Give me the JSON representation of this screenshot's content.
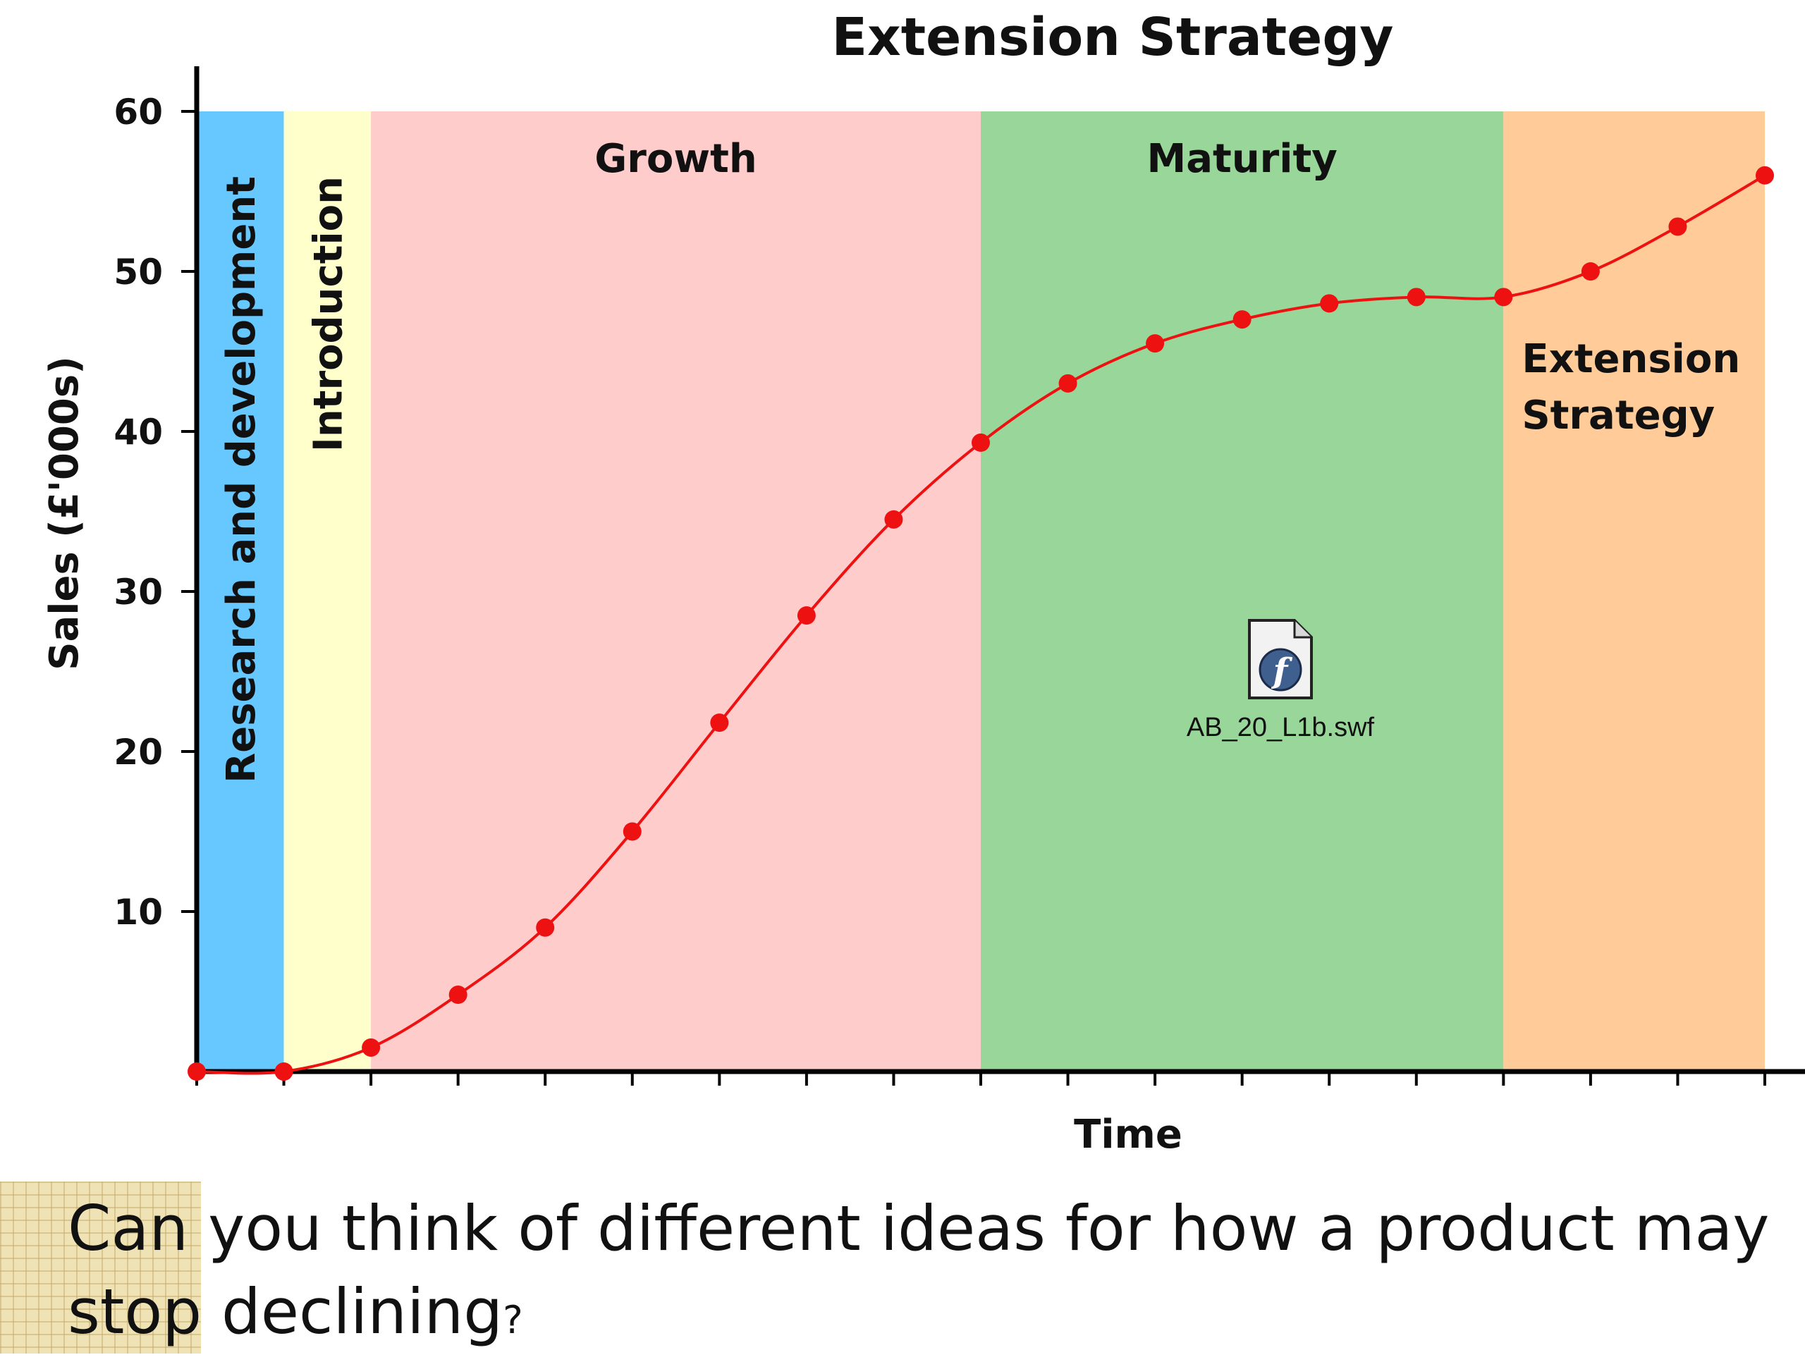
{
  "chart_data": {
    "type": "line",
    "title": "Extension Strategy",
    "xlabel": "Time",
    "ylabel": "Sales (£'000s)",
    "ylim": [
      0,
      60
    ],
    "xlim": [
      0,
      18
    ],
    "y_ticks": [
      10,
      20,
      30,
      40,
      50,
      60
    ],
    "x_tick_count": 19,
    "grid": false,
    "legend": "none",
    "series": [
      {
        "color": "#ee1111",
        "x": [
          0,
          1,
          2,
          3,
          4,
          5,
          6,
          7,
          8,
          9,
          10,
          11,
          12,
          13,
          14,
          15,
          16,
          17,
          18
        ],
        "values": [
          0,
          0,
          1.5,
          4.8,
          9,
          15,
          21.8,
          28.5,
          34.5,
          39.3,
          43,
          45.5,
          47,
          48,
          48.4,
          48.4,
          50,
          52.8,
          56
        ]
      }
    ],
    "stages": [
      {
        "label": "Research and development",
        "from": 0,
        "to": 1,
        "color": "#66c8ff",
        "orientation": "vertical"
      },
      {
        "label": "Introduction",
        "from": 1,
        "to": 2,
        "color": "#ffffcc",
        "orientation": "vertical"
      },
      {
        "label": "Growth",
        "from": 2,
        "to": 9,
        "color": "#ffcccc",
        "orientation": "horizontal"
      },
      {
        "label": "Maturity",
        "from": 9,
        "to": 15,
        "color": "#99d699",
        "orientation": "horizontal"
      },
      {
        "label": "Extension Strategy",
        "from": 15,
        "to": 18,
        "color": "#ffcc99",
        "orientation": "horizontal"
      }
    ]
  },
  "embedded_file": {
    "name": "AB_20_L1b.swf",
    "icon": "flash-file-icon"
  },
  "question": {
    "text": "Can you think of different ideas for how a product may stop declining",
    "mark": "?"
  }
}
